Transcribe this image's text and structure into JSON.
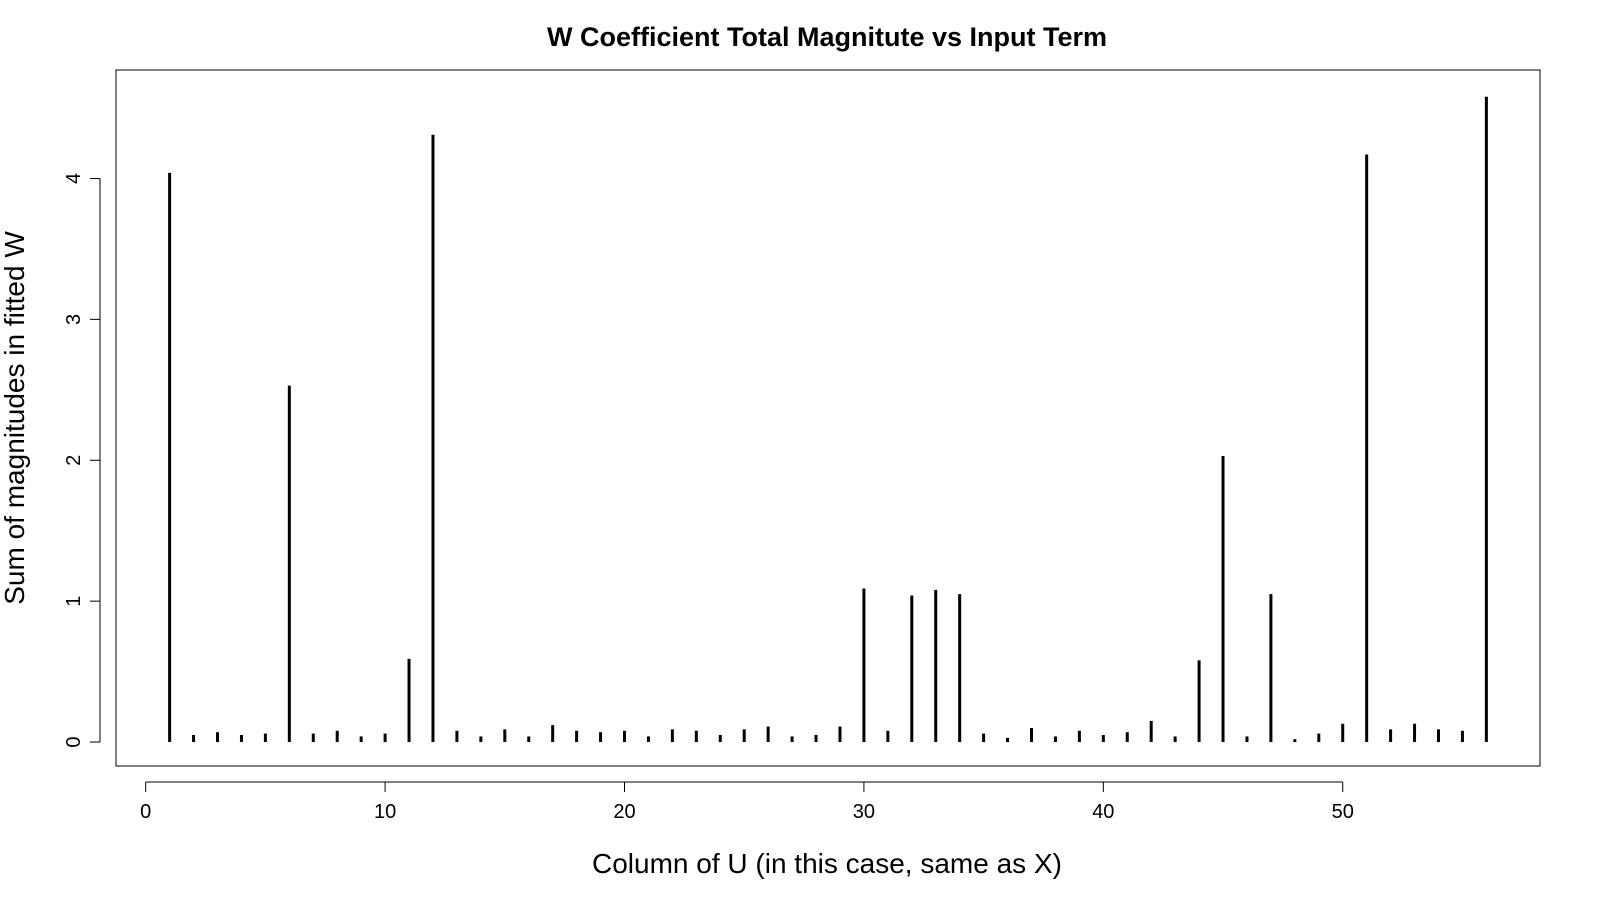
{
  "chart_data": {
    "type": "bar",
    "title": "W Coefficient Total Magnitute vs Input Term",
    "xlabel": "Column of U (in this case, same as X)",
    "ylabel": "Sum of magnitudes in fitted W",
    "xlim": [
      -1.24,
      58.24
    ],
    "ylim": [
      -0.17,
      4.77
    ],
    "x_ticks": [
      0,
      10,
      20,
      30,
      40,
      50
    ],
    "y_ticks": [
      0,
      1,
      2,
      3,
      4
    ],
    "grid": false,
    "x": [
      1,
      2,
      3,
      4,
      5,
      6,
      7,
      8,
      9,
      10,
      11,
      12,
      13,
      14,
      15,
      16,
      17,
      18,
      19,
      20,
      21,
      22,
      23,
      24,
      25,
      26,
      27,
      28,
      29,
      30,
      31,
      32,
      33,
      34,
      35,
      36,
      37,
      38,
      39,
      40,
      41,
      42,
      43,
      44,
      45,
      46,
      47,
      48,
      49,
      50,
      51,
      52,
      53,
      54,
      55,
      56
    ],
    "values": [
      4.04,
      0.05,
      0.07,
      0.05,
      0.06,
      2.53,
      0.06,
      0.08,
      0.04,
      0.06,
      0.59,
      4.31,
      0.08,
      0.04,
      0.09,
      0.04,
      0.12,
      0.08,
      0.07,
      0.08,
      0.04,
      0.09,
      0.08,
      0.05,
      0.09,
      0.11,
      0.04,
      0.05,
      0.11,
      1.09,
      0.08,
      1.04,
      1.08,
      1.05,
      0.06,
      0.03,
      0.1,
      0.04,
      0.08,
      0.05,
      0.07,
      0.15,
      0.04,
      0.58,
      2.03,
      0.04,
      1.05,
      0.02,
      0.06,
      0.13,
      4.17,
      0.09,
      0.13,
      0.09,
      0.08,
      4.58
    ]
  }
}
